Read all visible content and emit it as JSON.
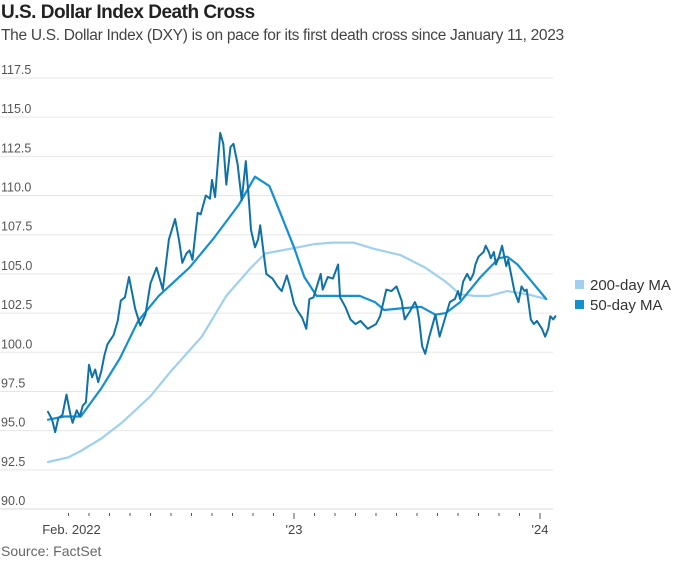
{
  "header": {
    "title": "U.S. Dollar Index Death Cross",
    "subtitle": "The U.S. Dollar Index (DXY) is on pace for its first death cross since January 11, 2023"
  },
  "footer": {
    "source": "Source: FactSet"
  },
  "colors": {
    "dxy": "#0e72a8",
    "ma50": "#1590cf",
    "ma200": "#9fd1ee",
    "grid": "#e6e6e6"
  },
  "chart_data": {
    "type": "line",
    "title": "U.S. Dollar Index Death Cross",
    "subtitle": "The U.S. Dollar Index (DXY) is on pace for its first death cross since January 11, 2023",
    "xlabel": "",
    "ylabel": "",
    "x_unit": "months since Jan 1, 2022",
    "xlim": [
      0,
      12.8
    ],
    "ylim": [
      90,
      117.5
    ],
    "yticks": [
      90.0,
      92.5,
      95.0,
      97.5,
      100.0,
      102.5,
      105.0,
      107.5,
      110.0,
      112.5,
      115.0,
      117.5
    ],
    "ytick_labels": [
      "90.0",
      "92.5",
      "95.0",
      "97.5",
      "100.0",
      "102.5",
      "105.0",
      "107.5",
      "110.0",
      "112.5",
      "115.0",
      "117.5"
    ],
    "xticks_labeled": [
      {
        "x": 1,
        "label": "Feb. 2022"
      },
      {
        "x": 12,
        "label": "'23"
      },
      {
        "x": 24,
        "label": "'24"
      }
    ],
    "xticks_minor": [
      1,
      2,
      3,
      4,
      5,
      6,
      7,
      8,
      9,
      10,
      11,
      12,
      13,
      14,
      15,
      16,
      17,
      18,
      18,
      19,
      20,
      21,
      22,
      23,
      24
    ],
    "grid": true,
    "legend_position": "right",
    "series": [
      {
        "name": "DXY",
        "role": "price",
        "points": [
          [
            0,
            96.2
          ],
          [
            0.2,
            95.7
          ],
          [
            0.35,
            94.9
          ],
          [
            0.5,
            95.8
          ],
          [
            0.7,
            96.0
          ],
          [
            0.9,
            97.3
          ],
          [
            1.1,
            96.0
          ],
          [
            1.2,
            95.5
          ],
          [
            1.4,
            96.3
          ],
          [
            1.55,
            95.9
          ],
          [
            1.7,
            96.6
          ],
          [
            1.85,
            96.8
          ],
          [
            2.0,
            99.2
          ],
          [
            2.15,
            98.4
          ],
          [
            2.3,
            98.9
          ],
          [
            2.45,
            98.1
          ],
          [
            2.6,
            98.8
          ],
          [
            2.75,
            99.8
          ],
          [
            2.9,
            100.5
          ],
          [
            3.05,
            100.8
          ],
          [
            3.2,
            101.1
          ],
          [
            3.4,
            102.0
          ],
          [
            3.55,
            103.3
          ],
          [
            3.75,
            103.5
          ],
          [
            3.95,
            104.8
          ],
          [
            4.1,
            103.8
          ],
          [
            4.25,
            102.8
          ],
          [
            4.5,
            101.7
          ],
          [
            4.75,
            102.4
          ],
          [
            5.0,
            104.4
          ],
          [
            5.3,
            105.4
          ],
          [
            5.6,
            104.0
          ],
          [
            5.9,
            107.2
          ],
          [
            6.2,
            108.5
          ],
          [
            6.4,
            107.1
          ],
          [
            6.55,
            105.7
          ],
          [
            6.75,
            106.3
          ],
          [
            6.9,
            106.5
          ],
          [
            7.05,
            105.9
          ],
          [
            7.3,
            108.9
          ],
          [
            7.45,
            108.8
          ],
          [
            7.7,
            110.0
          ],
          [
            7.9,
            109.8
          ],
          [
            8.0,
            111.0
          ],
          [
            8.15,
            109.9
          ],
          [
            8.4,
            114.0
          ],
          [
            8.55,
            113.3
          ],
          [
            8.7,
            110.7
          ],
          [
            8.9,
            113.1
          ],
          [
            9.05,
            113.3
          ],
          [
            9.25,
            112.0
          ],
          [
            9.45,
            109.7
          ],
          [
            9.65,
            112.2
          ],
          [
            9.8,
            109.7
          ],
          [
            9.9,
            107.8
          ],
          [
            10.1,
            106.7
          ],
          [
            10.25,
            107.2
          ],
          [
            10.35,
            108.1
          ],
          [
            10.5,
            106.5
          ],
          [
            10.65,
            105.0
          ],
          [
            10.95,
            104.7
          ],
          [
            11.2,
            104.2
          ],
          [
            11.4,
            103.9
          ],
          [
            11.65,
            104.9
          ],
          [
            11.8,
            104.2
          ],
          [
            12.0,
            103.1
          ],
          [
            12.15,
            102.7
          ],
          [
            12.4,
            102.2
          ],
          [
            12.6,
            101.5
          ],
          [
            12.75,
            103.4
          ],
          [
            12.95,
            103.5
          ],
          [
            13.3,
            105.0
          ],
          [
            13.4,
            104.0
          ],
          [
            13.65,
            104.8
          ],
          [
            13.9,
            104.7
          ],
          [
            14.15,
            105.6
          ],
          [
            14.25,
            103.5
          ],
          [
            14.5,
            102.9
          ],
          [
            14.75,
            102.1
          ],
          [
            15.0,
            101.8
          ],
          [
            15.25,
            102.0
          ],
          [
            15.6,
            101.5
          ],
          [
            16.0,
            101.8
          ],
          [
            16.2,
            102.3
          ],
          [
            16.5,
            104.0
          ],
          [
            16.75,
            103.9
          ],
          [
            17.0,
            104.2
          ],
          [
            17.25,
            103.3
          ],
          [
            17.4,
            102.1
          ],
          [
            17.65,
            102.6
          ],
          [
            17.9,
            103.2
          ],
          [
            18.0,
            102.9
          ],
          [
            18.1,
            102.1
          ],
          [
            18.25,
            100.4
          ],
          [
            18.4,
            99.9
          ],
          [
            18.6,
            101.0
          ],
          [
            18.9,
            102.4
          ],
          [
            19.1,
            101.0
          ],
          [
            19.35,
            102.1
          ],
          [
            19.6,
            103.2
          ],
          [
            19.85,
            103.4
          ],
          [
            20.0,
            103.9
          ],
          [
            20.1,
            103.4
          ],
          [
            20.25,
            104.5
          ],
          [
            20.45,
            105.0
          ],
          [
            20.6,
            104.6
          ],
          [
            20.75,
            105.0
          ],
          [
            20.85,
            105.6
          ],
          [
            21.0,
            106.1
          ],
          [
            21.25,
            106.4
          ],
          [
            21.35,
            106.8
          ],
          [
            21.5,
            106.4
          ],
          [
            21.6,
            106.0
          ],
          [
            21.75,
            106.4
          ],
          [
            21.85,
            105.6
          ],
          [
            22.0,
            106.1
          ],
          [
            22.15,
            106.8
          ],
          [
            22.35,
            105.5
          ],
          [
            22.45,
            105.9
          ],
          [
            22.6,
            104.9
          ],
          [
            22.75,
            103.9
          ],
          [
            22.95,
            103.2
          ],
          [
            23.1,
            104.2
          ],
          [
            23.25,
            103.9
          ],
          [
            23.35,
            104.0
          ],
          [
            23.45,
            103.1
          ],
          [
            23.55,
            102.1
          ],
          [
            23.7,
            101.8
          ],
          [
            23.85,
            102.0
          ],
          [
            24.1,
            101.5
          ],
          [
            24.25,
            101.0
          ],
          [
            24.4,
            101.5
          ],
          [
            24.5,
            102.3
          ],
          [
            24.65,
            102.1
          ],
          [
            24.75,
            102.3
          ]
        ]
      },
      {
        "name": "50-day MA",
        "role": "ma50",
        "points": [
          [
            0,
            95.7
          ],
          [
            0.8,
            95.9
          ],
          [
            1.6,
            95.9
          ],
          [
            2.6,
            97.7
          ],
          [
            3.5,
            99.6
          ],
          [
            4.4,
            102.0
          ],
          [
            5.4,
            103.6
          ],
          [
            6.9,
            105.4
          ],
          [
            8.1,
            107.3
          ],
          [
            9.3,
            109.4
          ],
          [
            10.1,
            111.2
          ],
          [
            10.8,
            110.6
          ],
          [
            11.3,
            109.0
          ],
          [
            12.0,
            106.7
          ],
          [
            12.5,
            104.8
          ],
          [
            13.1,
            103.6
          ],
          [
            13.7,
            103.6
          ],
          [
            15.2,
            103.6
          ],
          [
            15.95,
            103.2
          ],
          [
            16.4,
            102.7
          ],
          [
            17.2,
            102.8
          ],
          [
            18.2,
            102.9
          ],
          [
            18.9,
            102.4
          ],
          [
            19.4,
            102.5
          ],
          [
            20.1,
            103.2
          ],
          [
            21.1,
            104.8
          ],
          [
            22.0,
            106.0
          ],
          [
            22.4,
            106.1
          ],
          [
            22.9,
            105.6
          ],
          [
            23.6,
            104.5
          ],
          [
            24.3,
            103.4
          ]
        ]
      },
      {
        "name": "200-day MA",
        "role": "ma200",
        "points": [
          [
            0,
            93.0
          ],
          [
            1.0,
            93.3
          ],
          [
            1.6,
            93.7
          ],
          [
            2.6,
            94.5
          ],
          [
            3.6,
            95.5
          ],
          [
            5.0,
            97.2
          ],
          [
            6.0,
            98.8
          ],
          [
            7.5,
            101.0
          ],
          [
            8.7,
            103.6
          ],
          [
            9.9,
            105.4
          ],
          [
            10.6,
            106.3
          ],
          [
            11.8,
            106.6
          ],
          [
            12.2,
            106.7
          ],
          [
            13.0,
            106.9
          ],
          [
            13.9,
            107.0
          ],
          [
            14.9,
            107.0
          ],
          [
            15.9,
            106.6
          ],
          [
            17.2,
            106.2
          ],
          [
            18.4,
            105.4
          ],
          [
            19.4,
            104.5
          ],
          [
            20.1,
            103.7
          ],
          [
            20.8,
            103.6
          ],
          [
            21.5,
            103.6
          ],
          [
            22.4,
            103.9
          ],
          [
            23.4,
            103.7
          ],
          [
            24.3,
            103.4
          ]
        ]
      }
    ],
    "legend": [
      {
        "label": "200-day MA",
        "series": "200-day MA"
      },
      {
        "label": "50-day MA",
        "series": "50-day MA"
      }
    ]
  }
}
